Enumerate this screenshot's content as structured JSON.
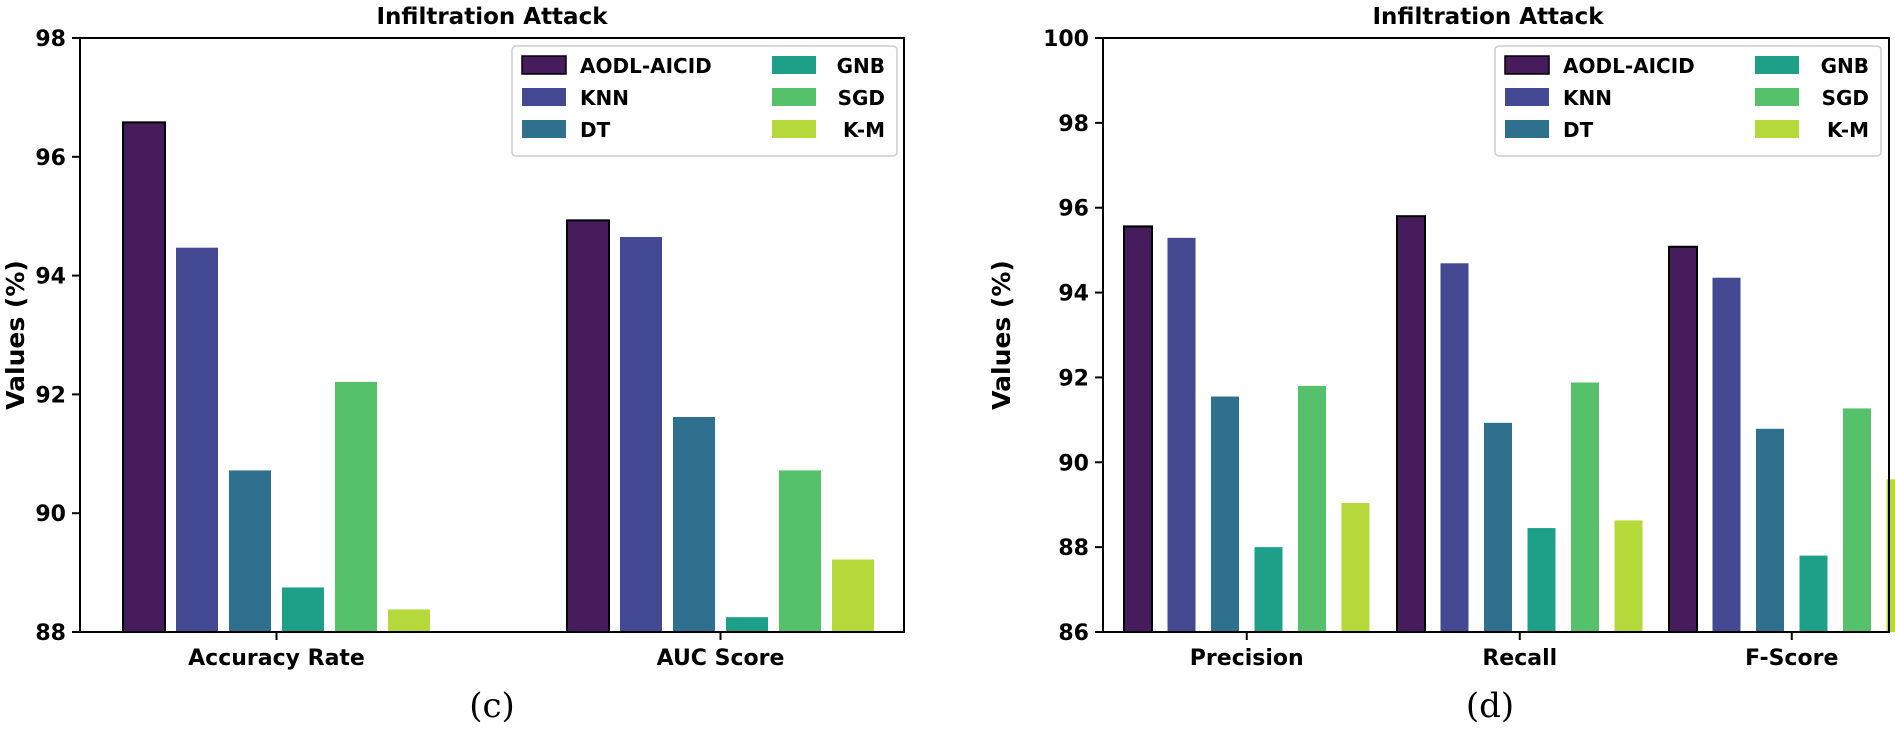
{
  "colors": {
    "AODL-AICID": "#461c5c",
    "KNN": "#434a93",
    "DT": "#2e708e",
    "GNB": "#1ea088",
    "SGD": "#56c16b",
    "K-M": "#b5d83a"
  },
  "legend_labels": [
    "AODL-AICID",
    "KNN",
    "DT",
    "GNB",
    "SGD",
    "K-M"
  ],
  "chart_data": [
    {
      "type": "bar",
      "title": "Infiltration Attack",
      "ylabel": "Values (%)",
      "xlabel": "",
      "ylim": [
        88,
        98
      ],
      "yticks": [
        88,
        90,
        92,
        94,
        96,
        98
      ],
      "categories": [
        "Accuracy Rate",
        "AUC Score"
      ],
      "caption": "(c)",
      "legend_position": "top-right",
      "series": [
        {
          "name": "AODL-AICID",
          "values": [
            96.58,
            94.93
          ]
        },
        {
          "name": "KNN",
          "values": [
            94.47,
            94.65
          ]
        },
        {
          "name": "DT",
          "values": [
            90.72,
            91.62
          ]
        },
        {
          "name": "GNB",
          "values": [
            88.75,
            88.25
          ]
        },
        {
          "name": "SGD",
          "values": [
            92.21,
            90.72
          ]
        },
        {
          "name": "K-M",
          "values": [
            88.38,
            89.22
          ]
        }
      ]
    },
    {
      "type": "bar",
      "title": "Infiltration Attack",
      "ylabel": "Values (%)",
      "xlabel": "",
      "ylim": [
        86,
        100
      ],
      "yticks": [
        86,
        88,
        90,
        92,
        94,
        96,
        98,
        100
      ],
      "categories": [
        "Precision",
        "Recall",
        "F-Score"
      ],
      "caption": "(d)",
      "legend_position": "top-right",
      "series": [
        {
          "name": "AODL-AICID",
          "values": [
            95.56,
            95.8,
            95.08
          ]
        },
        {
          "name": "KNN",
          "values": [
            95.29,
            94.69,
            94.35
          ]
        },
        {
          "name": "DT",
          "values": [
            91.55,
            90.93,
            90.79
          ]
        },
        {
          "name": "GNB",
          "values": [
            88.0,
            88.45,
            87.8
          ]
        },
        {
          "name": "SGD",
          "values": [
            91.8,
            91.88,
            91.27
          ]
        },
        {
          "name": "K-M",
          "values": [
            89.04,
            88.63,
            89.6
          ]
        }
      ]
    }
  ]
}
